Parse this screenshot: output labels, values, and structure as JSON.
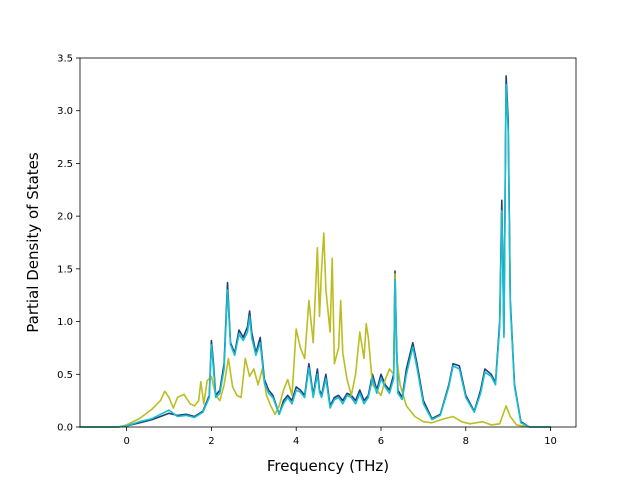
{
  "chart_data": {
    "type": "line",
    "title": "",
    "xlabel": "Frequency (THz)",
    "ylabel": "Partial Density of States",
    "xlim": [
      -1.1,
      10.6
    ],
    "ylim": [
      0.0,
      3.5
    ],
    "xticks": [
      0,
      2,
      4,
      6,
      8,
      10
    ],
    "yticks": [
      0.0,
      0.5,
      1.0,
      1.5,
      2.0,
      2.5,
      3.0,
      3.5
    ],
    "xtick_labels": [
      "0",
      "2",
      "4",
      "6",
      "8",
      "10"
    ],
    "ytick_labels": [
      "0.0",
      "0.5",
      "1.0",
      "1.5",
      "2.0",
      "2.5",
      "3.0",
      "3.5"
    ],
    "grid": false,
    "legend": "none",
    "series": [
      {
        "color": "#1f3f7a",
        "points": [
          [
            -1.1,
            0
          ],
          [
            -0.2,
            0
          ],
          [
            0,
            0.01
          ],
          [
            0.3,
            0.04
          ],
          [
            0.6,
            0.07
          ],
          [
            0.8,
            0.1
          ],
          [
            1.0,
            0.13
          ],
          [
            1.2,
            0.11
          ],
          [
            1.4,
            0.12
          ],
          [
            1.6,
            0.1
          ],
          [
            1.8,
            0.15
          ],
          [
            1.95,
            0.3
          ],
          [
            2.0,
            0.82
          ],
          [
            2.05,
            0.6
          ],
          [
            2.1,
            0.3
          ],
          [
            2.2,
            0.35
          ],
          [
            2.3,
            0.6
          ],
          [
            2.38,
            1.37
          ],
          [
            2.45,
            0.8
          ],
          [
            2.55,
            0.7
          ],
          [
            2.65,
            0.92
          ],
          [
            2.75,
            0.85
          ],
          [
            2.85,
            0.95
          ],
          [
            2.9,
            1.1
          ],
          [
            2.95,
            0.9
          ],
          [
            3.05,
            0.7
          ],
          [
            3.15,
            0.85
          ],
          [
            3.25,
            0.45
          ],
          [
            3.35,
            0.35
          ],
          [
            3.45,
            0.3
          ],
          [
            3.6,
            0.12
          ],
          [
            3.7,
            0.25
          ],
          [
            3.8,
            0.3
          ],
          [
            3.9,
            0.25
          ],
          [
            4.0,
            0.38
          ],
          [
            4.1,
            0.35
          ],
          [
            4.2,
            0.3
          ],
          [
            4.3,
            0.6
          ],
          [
            4.4,
            0.3
          ],
          [
            4.5,
            0.55
          ],
          [
            4.55,
            0.35
          ],
          [
            4.6,
            0.3
          ],
          [
            4.7,
            0.5
          ],
          [
            4.8,
            0.2
          ],
          [
            4.9,
            0.28
          ],
          [
            5.0,
            0.3
          ],
          [
            5.1,
            0.25
          ],
          [
            5.2,
            0.32
          ],
          [
            5.3,
            0.3
          ],
          [
            5.4,
            0.25
          ],
          [
            5.5,
            0.35
          ],
          [
            5.6,
            0.25
          ],
          [
            5.7,
            0.3
          ],
          [
            5.8,
            0.5
          ],
          [
            5.9,
            0.35
          ],
          [
            6.0,
            0.5
          ],
          [
            6.1,
            0.4
          ],
          [
            6.2,
            0.35
          ],
          [
            6.3,
            0.5
          ],
          [
            6.33,
            1.48
          ],
          [
            6.36,
            0.9
          ],
          [
            6.4,
            0.35
          ],
          [
            6.5,
            0.28
          ],
          [
            6.6,
            0.55
          ],
          [
            6.75,
            0.8
          ],
          [
            6.85,
            0.6
          ],
          [
            7.0,
            0.25
          ],
          [
            7.2,
            0.08
          ],
          [
            7.4,
            0.12
          ],
          [
            7.6,
            0.4
          ],
          [
            7.7,
            0.6
          ],
          [
            7.85,
            0.58
          ],
          [
            8.0,
            0.3
          ],
          [
            8.2,
            0.15
          ],
          [
            8.35,
            0.35
          ],
          [
            8.45,
            0.55
          ],
          [
            8.6,
            0.5
          ],
          [
            8.7,
            0.42
          ],
          [
            8.8,
            1.0
          ],
          [
            8.85,
            2.15
          ],
          [
            8.9,
            0.88
          ],
          [
            8.95,
            3.33
          ],
          [
            9.0,
            2.9
          ],
          [
            9.05,
            1.2
          ],
          [
            9.15,
            0.4
          ],
          [
            9.3,
            0.05
          ],
          [
            9.5,
            0
          ],
          [
            10.0,
            0
          ]
        ]
      },
      {
        "color": "#bcbd22",
        "points": [
          [
            -1.1,
            0
          ],
          [
            -0.2,
            0
          ],
          [
            0,
            0.02
          ],
          [
            0.3,
            0.08
          ],
          [
            0.6,
            0.17
          ],
          [
            0.8,
            0.25
          ],
          [
            0.9,
            0.34
          ],
          [
            1.0,
            0.28
          ],
          [
            1.1,
            0.18
          ],
          [
            1.2,
            0.28
          ],
          [
            1.35,
            0.31
          ],
          [
            1.5,
            0.22
          ],
          [
            1.6,
            0.2
          ],
          [
            1.7,
            0.25
          ],
          [
            1.75,
            0.43
          ],
          [
            1.82,
            0.22
          ],
          [
            1.9,
            0.44
          ],
          [
            2.0,
            0.48
          ],
          [
            2.1,
            0.3
          ],
          [
            2.2,
            0.25
          ],
          [
            2.3,
            0.4
          ],
          [
            2.4,
            0.65
          ],
          [
            2.5,
            0.38
          ],
          [
            2.6,
            0.3
          ],
          [
            2.7,
            0.28
          ],
          [
            2.8,
            0.65
          ],
          [
            2.9,
            0.48
          ],
          [
            3.0,
            0.55
          ],
          [
            3.1,
            0.4
          ],
          [
            3.2,
            0.55
          ],
          [
            3.3,
            0.3
          ],
          [
            3.4,
            0.2
          ],
          [
            3.5,
            0.12
          ],
          [
            3.6,
            0.2
          ],
          [
            3.7,
            0.35
          ],
          [
            3.8,
            0.45
          ],
          [
            3.9,
            0.3
          ],
          [
            4.0,
            0.93
          ],
          [
            4.1,
            0.75
          ],
          [
            4.2,
            0.65
          ],
          [
            4.3,
            1.2
          ],
          [
            4.4,
            0.8
          ],
          [
            4.5,
            1.7
          ],
          [
            4.55,
            1.05
          ],
          [
            4.6,
            1.5
          ],
          [
            4.65,
            1.84
          ],
          [
            4.7,
            1.3
          ],
          [
            4.8,
            0.9
          ],
          [
            4.85,
            1.6
          ],
          [
            4.9,
            0.6
          ],
          [
            5.0,
            0.75
          ],
          [
            5.05,
            1.2
          ],
          [
            5.1,
            0.7
          ],
          [
            5.2,
            0.45
          ],
          [
            5.3,
            0.3
          ],
          [
            5.4,
            0.5
          ],
          [
            5.5,
            0.9
          ],
          [
            5.6,
            0.65
          ],
          [
            5.65,
            0.98
          ],
          [
            5.7,
            0.85
          ],
          [
            5.8,
            0.4
          ],
          [
            5.9,
            0.35
          ],
          [
            6.0,
            0.3
          ],
          [
            6.1,
            0.45
          ],
          [
            6.2,
            0.55
          ],
          [
            6.3,
            0.5
          ],
          [
            6.33,
            1.45
          ],
          [
            6.36,
            0.7
          ],
          [
            6.45,
            0.4
          ],
          [
            6.6,
            0.2
          ],
          [
            6.8,
            0.1
          ],
          [
            7.0,
            0.05
          ],
          [
            7.2,
            0.04
          ],
          [
            7.5,
            0.08
          ],
          [
            7.7,
            0.1
          ],
          [
            7.9,
            0.05
          ],
          [
            8.1,
            0.03
          ],
          [
            8.4,
            0.05
          ],
          [
            8.6,
            0.02
          ],
          [
            8.8,
            0.03
          ],
          [
            8.95,
            0.2
          ],
          [
            9.05,
            0.1
          ],
          [
            9.2,
            0.02
          ],
          [
            9.5,
            0
          ],
          [
            10.0,
            0
          ]
        ]
      },
      {
        "color": "#17becf",
        "points": [
          [
            -1.1,
            0
          ],
          [
            -0.2,
            0
          ],
          [
            0,
            0.01
          ],
          [
            0.3,
            0.05
          ],
          [
            0.6,
            0.08
          ],
          [
            0.8,
            0.12
          ],
          [
            1.0,
            0.16
          ],
          [
            1.2,
            0.1
          ],
          [
            1.4,
            0.11
          ],
          [
            1.6,
            0.09
          ],
          [
            1.8,
            0.14
          ],
          [
            1.95,
            0.28
          ],
          [
            2.0,
            0.78
          ],
          [
            2.05,
            0.55
          ],
          [
            2.1,
            0.28
          ],
          [
            2.2,
            0.32
          ],
          [
            2.3,
            0.55
          ],
          [
            2.38,
            1.3
          ],
          [
            2.45,
            0.78
          ],
          [
            2.55,
            0.68
          ],
          [
            2.65,
            0.88
          ],
          [
            2.75,
            0.82
          ],
          [
            2.85,
            0.9
          ],
          [
            2.9,
            1.05
          ],
          [
            2.95,
            0.85
          ],
          [
            3.05,
            0.68
          ],
          [
            3.15,
            0.8
          ],
          [
            3.25,
            0.42
          ],
          [
            3.35,
            0.32
          ],
          [
            3.45,
            0.28
          ],
          [
            3.6,
            0.12
          ],
          [
            3.7,
            0.22
          ],
          [
            3.8,
            0.28
          ],
          [
            3.9,
            0.22
          ],
          [
            4.0,
            0.35
          ],
          [
            4.1,
            0.33
          ],
          [
            4.2,
            0.28
          ],
          [
            4.3,
            0.56
          ],
          [
            4.4,
            0.28
          ],
          [
            4.5,
            0.5
          ],
          [
            4.55,
            0.33
          ],
          [
            4.6,
            0.28
          ],
          [
            4.7,
            0.46
          ],
          [
            4.8,
            0.18
          ],
          [
            4.9,
            0.26
          ],
          [
            5.0,
            0.28
          ],
          [
            5.1,
            0.22
          ],
          [
            5.2,
            0.3
          ],
          [
            5.3,
            0.28
          ],
          [
            5.4,
            0.22
          ],
          [
            5.5,
            0.32
          ],
          [
            5.6,
            0.22
          ],
          [
            5.7,
            0.28
          ],
          [
            5.8,
            0.46
          ],
          [
            5.9,
            0.32
          ],
          [
            6.0,
            0.46
          ],
          [
            6.1,
            0.38
          ],
          [
            6.2,
            0.32
          ],
          [
            6.3,
            0.46
          ],
          [
            6.33,
            1.4
          ],
          [
            6.36,
            0.85
          ],
          [
            6.4,
            0.32
          ],
          [
            6.5,
            0.26
          ],
          [
            6.6,
            0.5
          ],
          [
            6.75,
            0.76
          ],
          [
            6.85,
            0.56
          ],
          [
            7.0,
            0.22
          ],
          [
            7.2,
            0.07
          ],
          [
            7.4,
            0.11
          ],
          [
            7.6,
            0.38
          ],
          [
            7.7,
            0.58
          ],
          [
            7.85,
            0.55
          ],
          [
            8.0,
            0.28
          ],
          [
            8.2,
            0.14
          ],
          [
            8.35,
            0.32
          ],
          [
            8.45,
            0.52
          ],
          [
            8.6,
            0.48
          ],
          [
            8.7,
            0.4
          ],
          [
            8.8,
            0.95
          ],
          [
            8.85,
            2.05
          ],
          [
            8.9,
            0.85
          ],
          [
            8.95,
            3.25
          ],
          [
            9.0,
            2.8
          ],
          [
            9.05,
            1.15
          ],
          [
            9.15,
            0.38
          ],
          [
            9.3,
            0.04
          ],
          [
            9.5,
            0
          ],
          [
            10.0,
            0
          ]
        ]
      }
    ]
  }
}
